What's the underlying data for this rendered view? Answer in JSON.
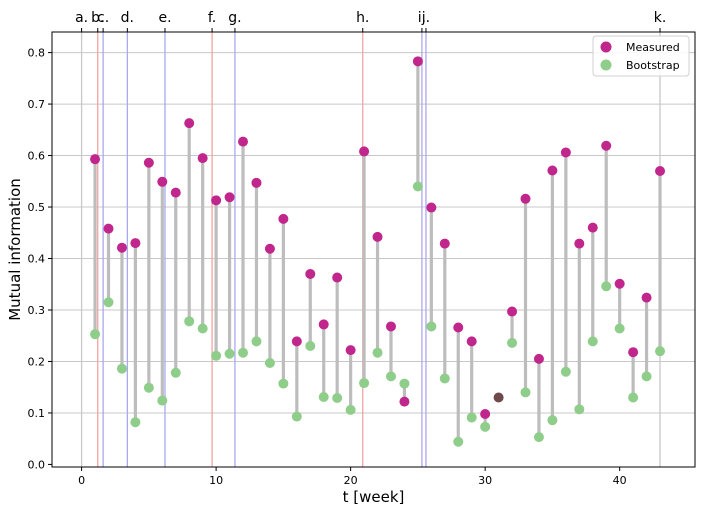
{
  "chart_data": {
    "type": "scatter",
    "xlabel": "t [week]",
    "ylabel": "Mutual information",
    "xlim": [
      -2.2,
      45.6
    ],
    "ylim": [
      -0.005,
      0.84
    ],
    "xticks": [
      0,
      10,
      20,
      30,
      40
    ],
    "yticks": [
      0.0,
      0.1,
      0.2,
      0.3,
      0.4,
      0.5,
      0.6,
      0.7,
      0.8
    ],
    "ytick_labels": [
      "0.0",
      "0.1",
      "0.2",
      "0.3",
      "0.4",
      "0.5",
      "0.6",
      "0.7",
      "0.8"
    ],
    "grid": "horizontal",
    "legend_position": "top-right",
    "colors": {
      "measured": "#c0268c",
      "bootstrap": "#8fce8a",
      "connector": "#bdbdbd",
      "overlap": "#6e4a4a",
      "grid": "#c8c8c8"
    },
    "events": [
      {
        "label": "a.",
        "x": 0.0,
        "color": "#c8c8c8"
      },
      {
        "label": "b.",
        "x": 1.2,
        "color": "#f2a3a3"
      },
      {
        "label": "c.",
        "x": 1.6,
        "color": "#a9a9ee"
      },
      {
        "label": "d.",
        "x": 3.4,
        "color": "#a9a9ee"
      },
      {
        "label": "e.",
        "x": 6.2,
        "color": "#a9a9ee"
      },
      {
        "label": "f.",
        "x": 9.7,
        "color": "#f2a3a3"
      },
      {
        "label": "g.",
        "x": 11.4,
        "color": "#a9a9ee"
      },
      {
        "label": "h.",
        "x": 20.9,
        "color": "#f2a3a3"
      },
      {
        "label": "i.",
        "x": 25.3,
        "color": "#a9a9ee"
      },
      {
        "label": "j.",
        "x": 25.6,
        "color": "#a9a9ee"
      },
      {
        "label": "k.",
        "x": 43.0,
        "color": "#c8c8c8"
      }
    ],
    "series": [
      {
        "name": "Measured",
        "x": [
          1,
          2,
          3,
          4,
          5,
          6,
          7,
          8,
          9,
          10,
          11,
          12,
          13,
          14,
          15,
          16,
          17,
          18,
          19,
          20,
          21,
          22,
          23,
          24,
          25,
          26,
          27,
          28,
          29,
          30,
          31,
          32,
          33,
          34,
          35,
          36,
          37,
          38,
          39,
          40,
          41,
          42,
          43
        ],
        "values": [
          0.593,
          0.458,
          0.421,
          0.43,
          0.586,
          0.549,
          0.528,
          0.663,
          0.595,
          0.513,
          0.519,
          0.627,
          0.547,
          0.419,
          0.477,
          0.239,
          0.37,
          0.272,
          0.363,
          0.222,
          0.608,
          0.442,
          0.268,
          0.122,
          0.783,
          0.499,
          0.429,
          0.266,
          0.239,
          0.098,
          0.13,
          0.297,
          0.516,
          0.205,
          0.571,
          0.606,
          0.429,
          0.46,
          0.619,
          0.351,
          0.218,
          0.324,
          0.57
        ]
      },
      {
        "name": "Bootstrap",
        "x": [
          1,
          2,
          3,
          4,
          5,
          6,
          7,
          8,
          9,
          10,
          11,
          12,
          13,
          14,
          15,
          16,
          17,
          18,
          19,
          20,
          21,
          22,
          23,
          24,
          25,
          26,
          27,
          28,
          29,
          30,
          31,
          32,
          33,
          34,
          35,
          36,
          37,
          38,
          39,
          40,
          41,
          42,
          43
        ],
        "values": [
          0.253,
          0.315,
          0.186,
          0.082,
          0.149,
          0.124,
          0.178,
          0.278,
          0.264,
          0.211,
          0.215,
          0.217,
          0.239,
          0.197,
          0.157,
          0.093,
          0.23,
          0.131,
          0.129,
          0.106,
          0.158,
          0.217,
          0.171,
          0.157,
          0.54,
          0.268,
          0.167,
          0.044,
          0.091,
          0.073,
          0.13,
          0.236,
          0.14,
          0.053,
          0.086,
          0.18,
          0.107,
          0.239,
          0.346,
          0.264,
          0.13,
          0.171,
          0.22
        ]
      }
    ],
    "overlap_points": [
      31
    ]
  },
  "legend": {
    "measured_label": "Measured",
    "bootstrap_label": "Bootstrap"
  }
}
